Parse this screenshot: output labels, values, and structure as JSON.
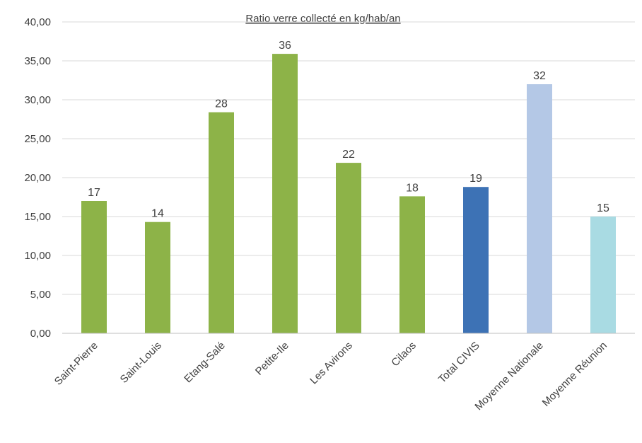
{
  "chart_data": {
    "type": "bar",
    "title": "Ratio verre collecté en kg/hab/an",
    "xlabel": "",
    "ylabel": "",
    "ylim": [
      0,
      40
    ],
    "y_ticks": [
      "0,00",
      "5,00",
      "10,00",
      "15,00",
      "20,00",
      "25,00",
      "30,00",
      "35,00",
      "40,00"
    ],
    "categories": [
      "Saint-Pierre",
      "Saint-Louis",
      "Etang-Salé",
      "Petite-Ile",
      "Les Avirons",
      "Cilaos",
      "Total CIVIS",
      "Moyenne Nationale",
      "Moyenne Réunion"
    ],
    "values": [
      17,
      14.3,
      28.4,
      35.9,
      21.9,
      17.6,
      18.8,
      32,
      15
    ],
    "data_labels": [
      "17",
      "14",
      "28",
      "36",
      "22",
      "18",
      "19",
      "32",
      "15"
    ],
    "colors": [
      "#8db348",
      "#8db348",
      "#8db348",
      "#8db348",
      "#8db348",
      "#8db348",
      "#3d72b5",
      "#b4c8e6",
      "#a9dbe3"
    ],
    "grid": true,
    "legend": "none"
  }
}
